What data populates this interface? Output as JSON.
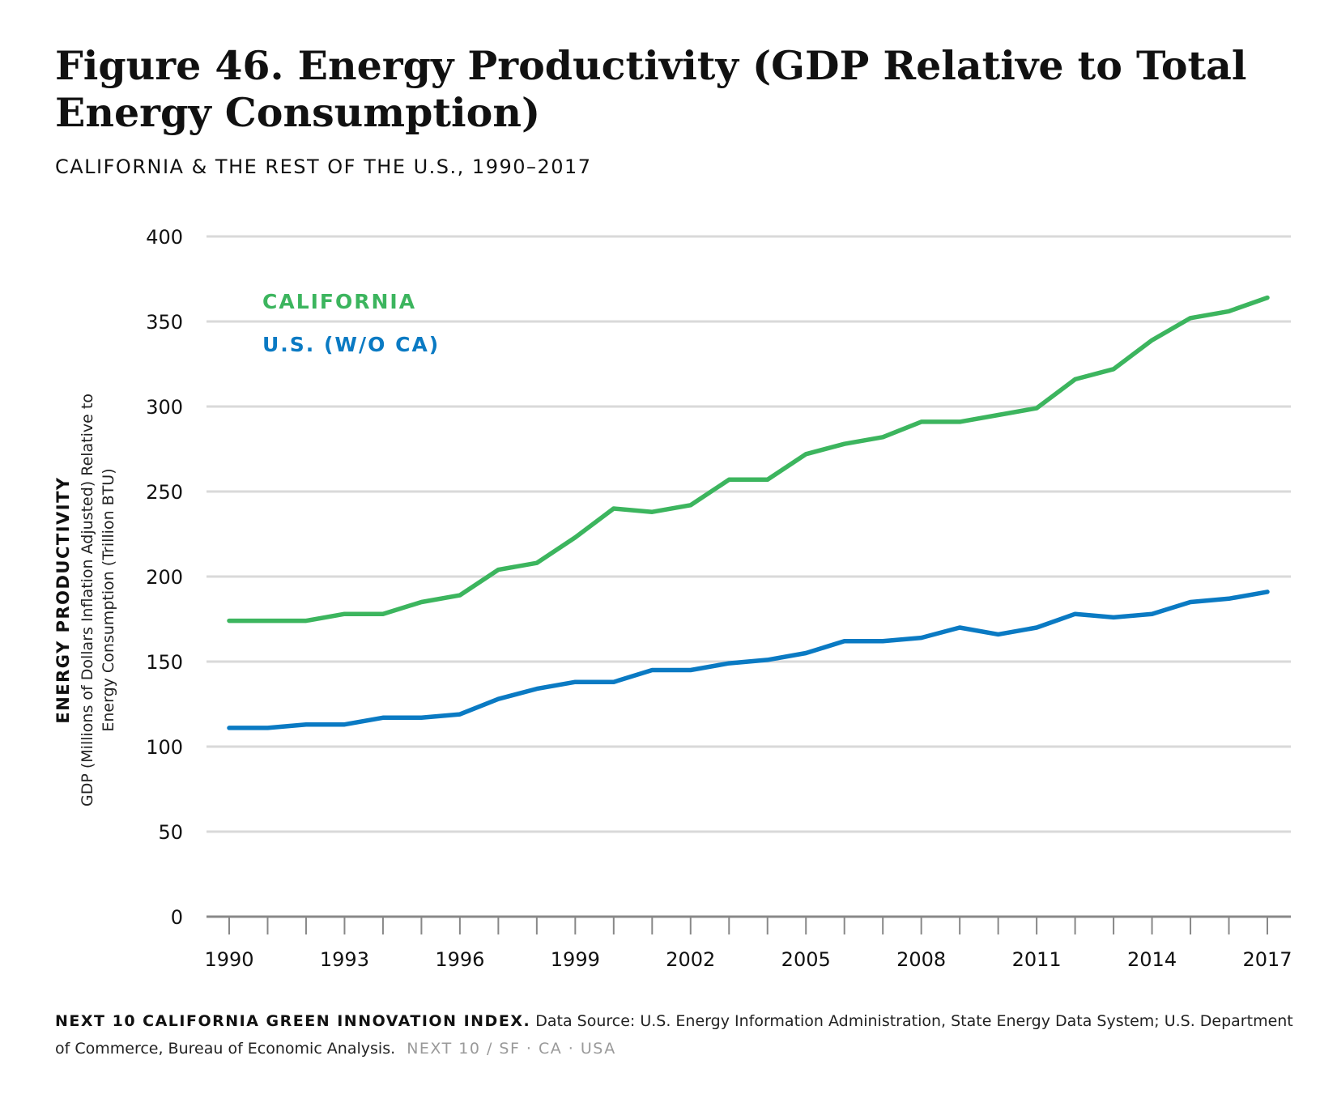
{
  "figure": {
    "title": "Figure 46. Energy Productivity (GDP Relative to Total Energy Consumption)",
    "subtitle": "CALIFORNIA & THE REST OF THE U.S., 1990–2017"
  },
  "footer": {
    "bold": "NEXT 10 CALIFORNIA GREEN INNOVATION INDEX.",
    "source": "Data Source: U.S. Energy Information Administration, State Energy Data System; U.S. Department of Commerce, Bureau of Economic Analysis.",
    "org": "NEXT 10  /  SF · CA · USA"
  },
  "colors": {
    "california": "#3cb55e",
    "us": "#0a7ac3",
    "grid": "#d9d9d9",
    "axis": "#888888"
  },
  "chart_data": {
    "type": "line",
    "title": "Figure 46. Energy Productivity (GDP Relative to Total Energy Consumption)",
    "subtitle": "CALIFORNIA & THE REST OF THE U.S., 1990–2017",
    "ylabel": "ENERGY PRODUCTIVITY",
    "ylabel_sub": [
      "GDP (Millions of Dollars Inflation Adjusted) Relative to",
      "Energy Consumption (Trillion BTU)"
    ],
    "xlabel": "",
    "x": [
      1990,
      1991,
      1992,
      1993,
      1994,
      1995,
      1996,
      1997,
      1998,
      1999,
      2000,
      2001,
      2002,
      2003,
      2004,
      2005,
      2006,
      2007,
      2008,
      2009,
      2010,
      2011,
      2012,
      2013,
      2014,
      2015,
      2016,
      2017
    ],
    "x_tick_labels": [
      "1990",
      "1993",
      "1996",
      "1999",
      "2002",
      "2005",
      "2008",
      "2011",
      "2014",
      "2017"
    ],
    "y_ticks": [
      0,
      50,
      100,
      150,
      200,
      250,
      300,
      350,
      400
    ],
    "ylim": [
      0,
      400
    ],
    "grid": true,
    "legend_position": "top-left",
    "series": [
      {
        "name": "CALIFORNIA",
        "color": "#3cb55e",
        "values": [
          174,
          174,
          174,
          178,
          178,
          185,
          189,
          204,
          208,
          223,
          240,
          238,
          242,
          257,
          257,
          272,
          278,
          282,
          291,
          291,
          295,
          299,
          316,
          322,
          339,
          352,
          356,
          364
        ]
      },
      {
        "name": "U.S. (W/O CA)",
        "color": "#0a7ac3",
        "values": [
          111,
          111,
          113,
          113,
          117,
          117,
          119,
          128,
          134,
          138,
          138,
          145,
          145,
          149,
          151,
          155,
          162,
          162,
          164,
          170,
          166,
          170,
          178,
          176,
          178,
          185,
          187,
          191
        ]
      }
    ]
  }
}
